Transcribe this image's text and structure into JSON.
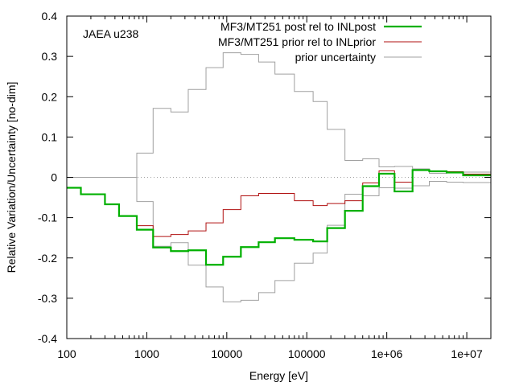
{
  "chart_data": {
    "type": "line",
    "step": true,
    "annotation": "JAEA u238",
    "xlabel": "Energy [eV]",
    "ylabel": "Relative Variation/Uncertainty [no-dim]",
    "xscale": "log",
    "xlim": [
      100,
      20000000
    ],
    "ylim": [
      -0.4,
      0.4
    ],
    "xticks": [
      {
        "value": 100,
        "label": "100"
      },
      {
        "value": 1000,
        "label": "1000"
      },
      {
        "value": 10000,
        "label": "10000"
      },
      {
        "value": 100000,
        "label": "100000"
      },
      {
        "value": 1000000,
        "label": "1e+06"
      },
      {
        "value": 10000000,
        "label": "1e+07"
      }
    ],
    "yticks": [
      {
        "value": -0.4,
        "label": "-0.4"
      },
      {
        "value": -0.3,
        "label": "-0.3"
      },
      {
        "value": -0.2,
        "label": "-0.2"
      },
      {
        "value": -0.1,
        "label": "-0.1"
      },
      {
        "value": 0,
        "label": "0"
      },
      {
        "value": 0.1,
        "label": "0.1"
      },
      {
        "value": 0.2,
        "label": "0.2"
      },
      {
        "value": 0.3,
        "label": "0.3"
      },
      {
        "value": 0.4,
        "label": "0.4"
      }
    ],
    "zero_line": {
      "y": 0,
      "style": "dotted",
      "color": "#a0a0a0"
    },
    "legend_position": "top-right",
    "bin_edges": [
      100,
      150,
      300,
      450,
      750,
      1200,
      2000,
      3300,
      5500,
      9000,
      15000,
      25000,
      40000,
      70000,
      120000,
      180000,
      300000,
      500000,
      800000,
      1250000,
      2100000,
      3400000,
      5600000,
      9000000,
      20000000
    ],
    "series": [
      {
        "name": "MF3/MT251 post rel to INLpost",
        "color": "#00b000",
        "width": 2.2,
        "values": [
          -0.026,
          -0.042,
          -0.067,
          -0.096,
          -0.13,
          -0.174,
          -0.183,
          -0.181,
          -0.217,
          -0.197,
          -0.173,
          -0.161,
          -0.151,
          -0.155,
          -0.159,
          -0.126,
          -0.083,
          -0.022,
          0.009,
          -0.035,
          0.018,
          0.015,
          0.012,
          0.005
        ]
      },
      {
        "name": "MF3/MT251 prior rel to INLprior",
        "color": "#b01010",
        "width": 1,
        "values": [
          -0.025,
          -0.042,
          -0.066,
          -0.095,
          -0.12,
          -0.147,
          -0.142,
          -0.133,
          -0.113,
          -0.08,
          -0.046,
          -0.04,
          -0.04,
          -0.058,
          -0.07,
          -0.065,
          -0.058,
          -0.014,
          0.016,
          -0.012,
          0.018,
          0.016,
          0.014,
          0.008
        ]
      },
      {
        "name": "prior uncertainty",
        "color": "#a0a0a0",
        "width": 1,
        "symmetric": true,
        "values": [
          0,
          0,
          0,
          0,
          0.06,
          0.171,
          0.162,
          0.218,
          0.272,
          0.309,
          0.305,
          0.286,
          0.256,
          0.213,
          0.188,
          0.119,
          0.042,
          0.046,
          0.026,
          0.027,
          0.021,
          0.01,
          0.012,
          0.013
        ]
      }
    ]
  }
}
